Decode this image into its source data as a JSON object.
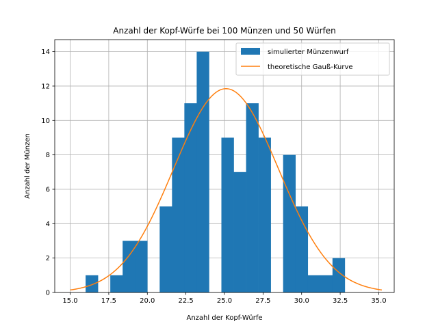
{
  "chart_data": {
    "type": "bar",
    "title": "Anzahl der Kopf-Würfe bei 100 Münzen und 50 Würfen",
    "xlabel": "Anzahl der Kopf-Würfe",
    "ylabel": "Anzahl der Münzen",
    "xlim": [
      14.0,
      36.0
    ],
    "ylim": [
      0,
      14.7
    ],
    "grid": true,
    "legend_position": "top-right",
    "xticks": [
      15.0,
      17.5,
      20.0,
      22.5,
      25.0,
      27.5,
      30.0,
      32.5,
      35.0
    ],
    "xtick_labels": [
      "15.0",
      "17.5",
      "20.0",
      "22.5",
      "25.0",
      "27.5",
      "30.0",
      "32.5",
      "35.0"
    ],
    "yticks": [
      0,
      2,
      4,
      6,
      8,
      10,
      12,
      14
    ],
    "ytick_labels": [
      "0",
      "2",
      "4",
      "6",
      "8",
      "10",
      "12",
      "14"
    ],
    "histogram": {
      "name": "simulierter Münzenwurf",
      "color": "#1f77b4",
      "bin_edges": [
        16.0,
        16.8,
        17.6,
        18.4,
        19.2,
        20.0,
        20.8,
        21.6,
        22.4,
        23.2,
        24.0,
        24.8,
        25.6,
        26.4,
        27.2,
        28.0,
        28.8,
        29.6,
        30.4,
        31.2,
        32.0,
        32.8
      ],
      "values": [
        1,
        0,
        1,
        3,
        3,
        0,
        5,
        9,
        11,
        14,
        0,
        9,
        7,
        11,
        9,
        0,
        8,
        5,
        1,
        1,
        2
      ]
    },
    "curve": {
      "name": "theoretische Gauß-Kurve",
      "color": "#ff7f0e",
      "mean": 25.1,
      "std": 3.4,
      "peak": 11.85,
      "x_range": [
        15.0,
        35.2
      ]
    }
  }
}
